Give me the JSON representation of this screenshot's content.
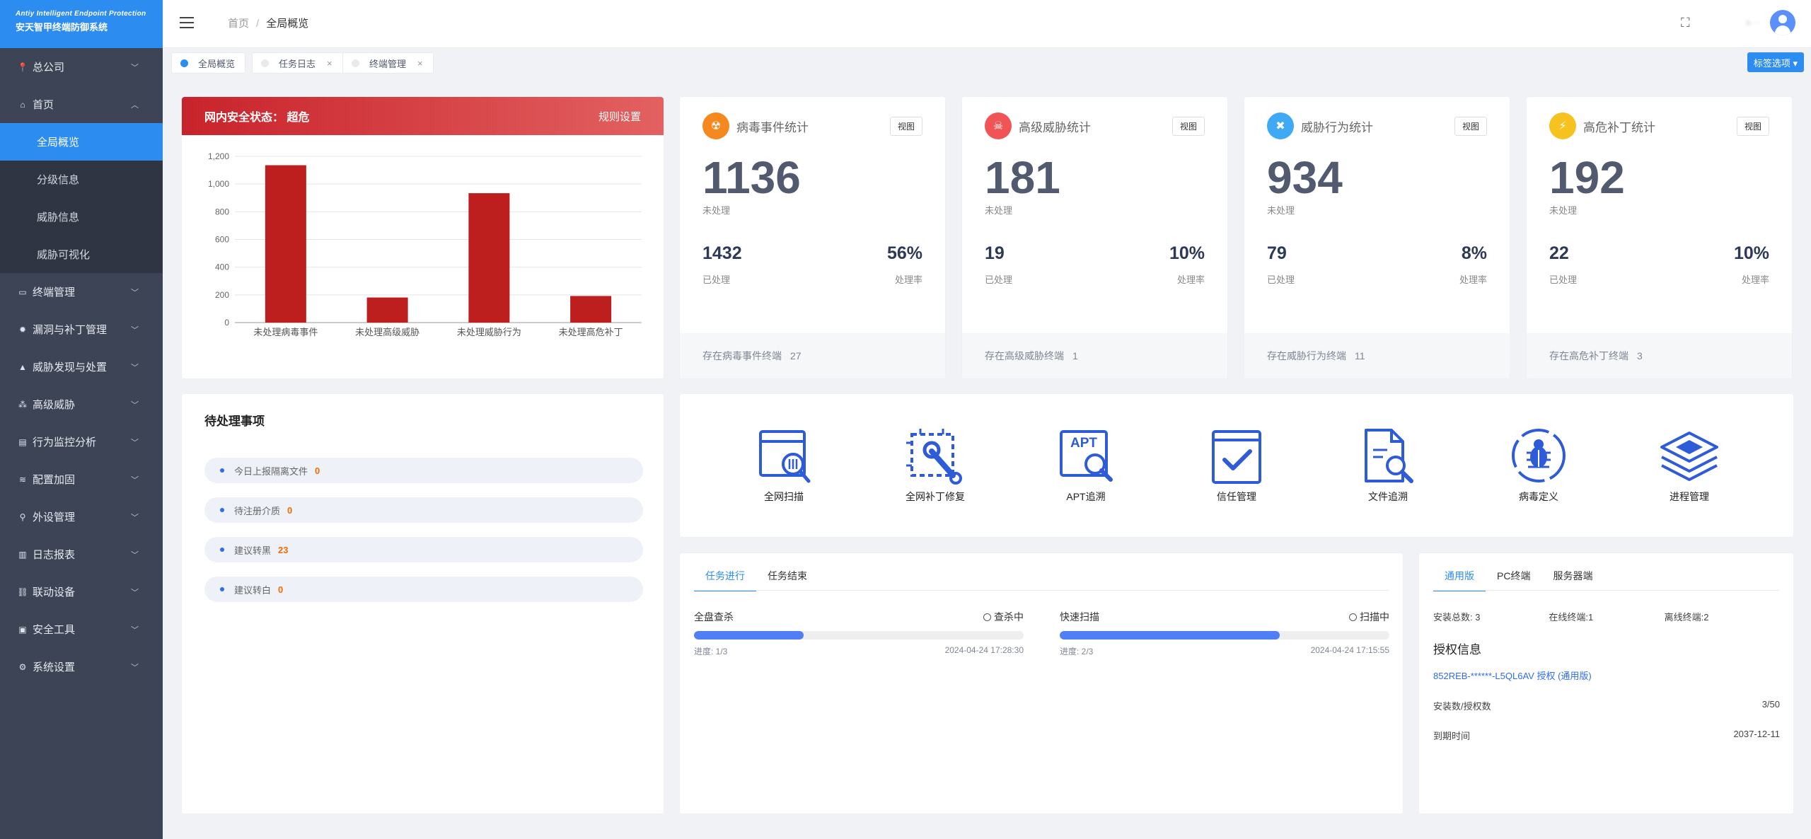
{
  "app": {
    "logo_en": "Antiy Intelligent Endpoint Protection",
    "logo_cn": "安天智甲终端防御系统"
  },
  "sidebar": {
    "items": [
      {
        "label": "总公司",
        "icon": "map-pin-icon"
      },
      {
        "label": "首页",
        "icon": "home-icon",
        "expanded": true,
        "children": [
          {
            "label": "全局概览",
            "active": true
          },
          {
            "label": "分级信息"
          },
          {
            "label": "威胁信息"
          },
          {
            "label": "威胁可视化"
          }
        ]
      },
      {
        "label": "终端管理",
        "icon": "monitor-icon"
      },
      {
        "label": "漏洞与补丁管理",
        "icon": "bug-icon"
      },
      {
        "label": "威胁发现与处置",
        "icon": "warning-icon"
      },
      {
        "label": "高级威胁",
        "icon": "cluster-icon"
      },
      {
        "label": "行为监控分析",
        "icon": "list-icon"
      },
      {
        "label": "配置加固",
        "icon": "wifi-icon"
      },
      {
        "label": "外设管理",
        "icon": "usb-icon"
      },
      {
        "label": "日志报表",
        "icon": "bar-chart-icon"
      },
      {
        "label": "联动设备",
        "icon": "link-icon"
      },
      {
        "label": "安全工具",
        "icon": "toolbox-icon"
      },
      {
        "label": "系统设置",
        "icon": "gear-icon"
      }
    ]
  },
  "header": {
    "breadcrumb_home": "首页",
    "breadcrumb_sep": "/",
    "breadcrumb_current": "全局概览",
    "user": "s···"
  },
  "tabs": [
    {
      "label": "全局概览",
      "active": true
    },
    {
      "label": "任务日志",
      "closable": true
    },
    {
      "label": "终端管理",
      "closable": true
    }
  ],
  "tag_options": "标签选项 ▾",
  "security_status": {
    "title": "网内安全状态：  超危",
    "rules_link": "规则设置",
    "chart_data": {
      "type": "bar",
      "categories": [
        "未处理病毒事件",
        "未处理高级威胁",
        "未处理威胁行为",
        "未处理高危补丁"
      ],
      "values": [
        1136,
        181,
        934,
        192
      ],
      "ylim": [
        0,
        1200
      ],
      "yticks": [
        "0",
        "200",
        "400",
        "600",
        "800",
        "1,000",
        "1,200"
      ],
      "bar_color": "#bd1f1f",
      "grid": true
    }
  },
  "stats": [
    {
      "title": "病毒事件统计",
      "icon": "virus-icon",
      "color": "#f5891f",
      "view": "视图",
      "unprocessed": "1136",
      "unprocessed_label": "未处理",
      "processed": "1432",
      "processed_label": "已处理",
      "rate": "56%",
      "rate_label": "处理率",
      "footer": "存在病毒事件终端",
      "footer_count": "27"
    },
    {
      "title": "高级威胁统计",
      "icon": "skull-icon",
      "color": "#f05454",
      "view": "视图",
      "unprocessed": "181",
      "unprocessed_label": "未处理",
      "processed": "19",
      "processed_label": "已处理",
      "rate": "10%",
      "rate_label": "处理率",
      "footer": "存在高级威胁终端",
      "footer_count": "1"
    },
    {
      "title": "威胁行为统计",
      "icon": "tools-icon",
      "color": "#3fa9f5",
      "view": "视图",
      "unprocessed": "934",
      "unprocessed_label": "未处理",
      "processed": "79",
      "processed_label": "已处理",
      "rate": "8%",
      "rate_label": "处理率",
      "footer": "存在威胁行为终端",
      "footer_count": "11"
    },
    {
      "title": "高危补丁统计",
      "icon": "lightning-icon",
      "color": "#f5c21f",
      "view": "视图",
      "unprocessed": "192",
      "unprocessed_label": "未处理",
      "processed": "22",
      "processed_label": "已处理",
      "rate": "10%",
      "rate_label": "处理率",
      "footer": "存在高危补丁终端",
      "footer_count": "3"
    }
  ],
  "pending": {
    "title": "待处理事项",
    "items": [
      {
        "label": "今日上报隔离文件",
        "count": "0"
      },
      {
        "label": "待注册介质",
        "count": "0"
      },
      {
        "label": "建议转黑",
        "count": "23"
      },
      {
        "label": "建议转白",
        "count": "0"
      }
    ]
  },
  "tools": [
    {
      "label": "全网扫描",
      "icon": "scan-icon"
    },
    {
      "label": "全网补丁修复",
      "icon": "patch-repair-icon"
    },
    {
      "label": "APT追溯",
      "icon": "apt-trace-icon"
    },
    {
      "label": "信任管理",
      "icon": "trust-check-icon"
    },
    {
      "label": "文件追溯",
      "icon": "file-trace-icon"
    },
    {
      "label": "病毒定义",
      "icon": "virus-define-icon"
    },
    {
      "label": "进程管理",
      "icon": "layers-icon"
    }
  ],
  "tasks": {
    "tabs": [
      "任务进行",
      "任务结束"
    ],
    "items": [
      {
        "name": "全盘查杀",
        "status": "查杀中",
        "progress": 0.333,
        "progress_text": "进度: 1/3",
        "time": "2024-04-24 17:28:30"
      },
      {
        "name": "快速扫描",
        "status": "扫描中",
        "progress": 0.667,
        "progress_text": "进度: 2/3",
        "time": "2024-04-24 17:15:55"
      }
    ]
  },
  "license": {
    "tabs": [
      "通用版",
      "PC终端",
      "服务器端"
    ],
    "install_total": "安装总数: 3",
    "online": "在线终端:1",
    "offline": "离线终端:2",
    "title": "授权信息",
    "key": "852REB-******-L5QL6AV 授权 (通用版)",
    "installed_label": "安装数/授权数",
    "installed_value": "3/50",
    "expire_label": "到期时间",
    "expire_value": "2037-12-11"
  }
}
